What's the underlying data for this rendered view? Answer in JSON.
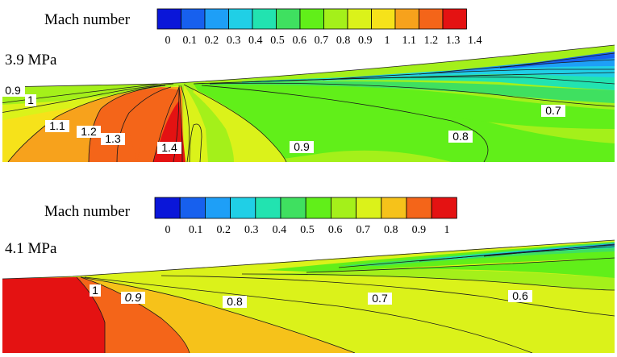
{
  "panels": [
    {
      "legend": {
        "title": "Mach number",
        "colors": [
          "#0a16d9",
          "#1760ee",
          "#1e9ff7",
          "#20cfe6",
          "#22e3b0",
          "#3fe060",
          "#61ef19",
          "#a4f01a",
          "#dbf21a",
          "#f6e21a",
          "#f7a21c",
          "#f46519",
          "#e41212"
        ],
        "ticks": [
          "0",
          "0.1",
          "0.2",
          "0.3",
          "0.4",
          "0.5",
          "0.6",
          "0.7",
          "0.8",
          "0.9",
          "1",
          "1.1",
          "1.2",
          "1.3",
          "1.4"
        ]
      },
      "pressure_label": "3.9 MPa",
      "contour_labels": [
        {
          "text": "0.9"
        },
        {
          "text": "1"
        },
        {
          "text": "1.1"
        },
        {
          "text": "1.2"
        },
        {
          "text": "1.3"
        },
        {
          "text": "1.4"
        },
        {
          "text": "0.9"
        },
        {
          "text": "0.8"
        },
        {
          "text": "0.7"
        }
      ]
    },
    {
      "legend": {
        "title": "Mach number",
        "colors": [
          "#0a16d9",
          "#1760ee",
          "#1e9ff7",
          "#20cfe6",
          "#22e3b0",
          "#3fe060",
          "#61ef19",
          "#a4f01a",
          "#dbf21a",
          "#f6c21a",
          "#f46519",
          "#e41212"
        ],
        "ticks": [
          "0",
          "0.1",
          "0.2",
          "0.3",
          "0.4",
          "0.5",
          "0.6",
          "0.7",
          "0.8",
          "0.9",
          "1"
        ]
      },
      "pressure_label": "4.1 MPa",
      "contour_labels": [
        {
          "text": "1"
        },
        {
          "text": "0.9"
        },
        {
          "text": "0.8"
        },
        {
          "text": "0.7"
        },
        {
          "text": "0.6"
        }
      ]
    }
  ]
}
